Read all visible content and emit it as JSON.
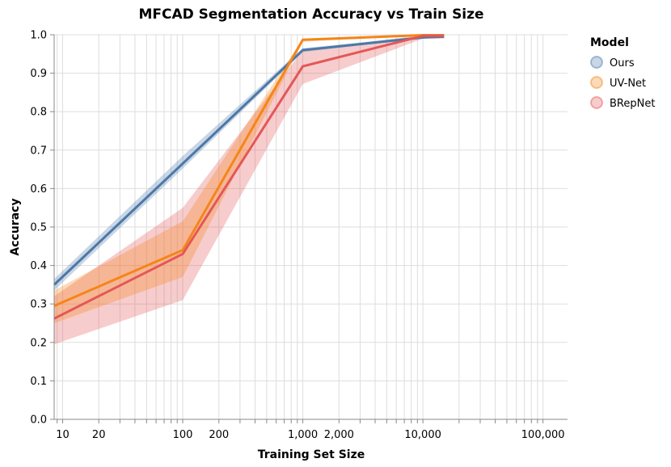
{
  "chart_data": {
    "type": "line",
    "title": "MFCAD Segmentation Accuracy vs Train Size",
    "xlabel": "Training Set Size",
    "ylabel": "Accuracy",
    "xscale": "log",
    "xlim": [
      8.5,
      160000
    ],
    "ylim": [
      0,
      1
    ],
    "x_ticks": [
      {
        "value": 10,
        "label": "10"
      },
      {
        "value": 20,
        "label": "20"
      },
      {
        "value": 100,
        "label": "100"
      },
      {
        "value": 200,
        "label": "200"
      },
      {
        "value": 1000,
        "label": "1,000"
      },
      {
        "value": 2000,
        "label": "2,000"
      },
      {
        "value": 10000,
        "label": "10,000"
      },
      {
        "value": 100000,
        "label": "100,000"
      }
    ],
    "y_ticks": [
      {
        "value": 0.0,
        "label": "0.0"
      },
      {
        "value": 0.1,
        "label": "0.1"
      },
      {
        "value": 0.2,
        "label": "0.2"
      },
      {
        "value": 0.3,
        "label": "0.3"
      },
      {
        "value": 0.4,
        "label": "0.4"
      },
      {
        "value": 0.5,
        "label": "0.5"
      },
      {
        "value": 0.6,
        "label": "0.6"
      },
      {
        "value": 0.7,
        "label": "0.7"
      },
      {
        "value": 0.8,
        "label": "0.8"
      },
      {
        "value": 0.9,
        "label": "0.9"
      },
      {
        "value": 1.0,
        "label": "1.0"
      }
    ],
    "grid": true,
    "legend": {
      "title": "Model",
      "position": "right"
    },
    "series": [
      {
        "name": "Ours",
        "color": "#4c78a8",
        "x": [
          8.5,
          100,
          1000,
          10000,
          15000
        ],
        "y": [
          0.35,
          0.665,
          0.96,
          0.993,
          0.995
        ],
        "lower": [
          0.335,
          0.652,
          0.955,
          0.991,
          0.993
        ],
        "upper": [
          0.365,
          0.685,
          0.965,
          0.996,
          0.997
        ]
      },
      {
        "name": "UV-Net",
        "color": "#f58518",
        "x": [
          8.5,
          100,
          1000,
          10000,
          15000
        ],
        "y": [
          0.295,
          0.44,
          0.987,
          0.999,
          0.999
        ],
        "lower": [
          0.25,
          0.37,
          0.982,
          0.997,
          0.997
        ],
        "upper": [
          0.335,
          0.515,
          0.99,
          1.0,
          1.0
        ]
      },
      {
        "name": "BRepNet",
        "color": "#e45756",
        "x": [
          8.5,
          100,
          1000,
          10000,
          15000
        ],
        "y": [
          0.262,
          0.43,
          0.918,
          0.997,
          0.997
        ],
        "lower": [
          0.195,
          0.31,
          0.872,
          0.99,
          0.99
        ],
        "upper": [
          0.32,
          0.55,
          0.96,
          0.999,
          0.999
        ]
      }
    ]
  }
}
